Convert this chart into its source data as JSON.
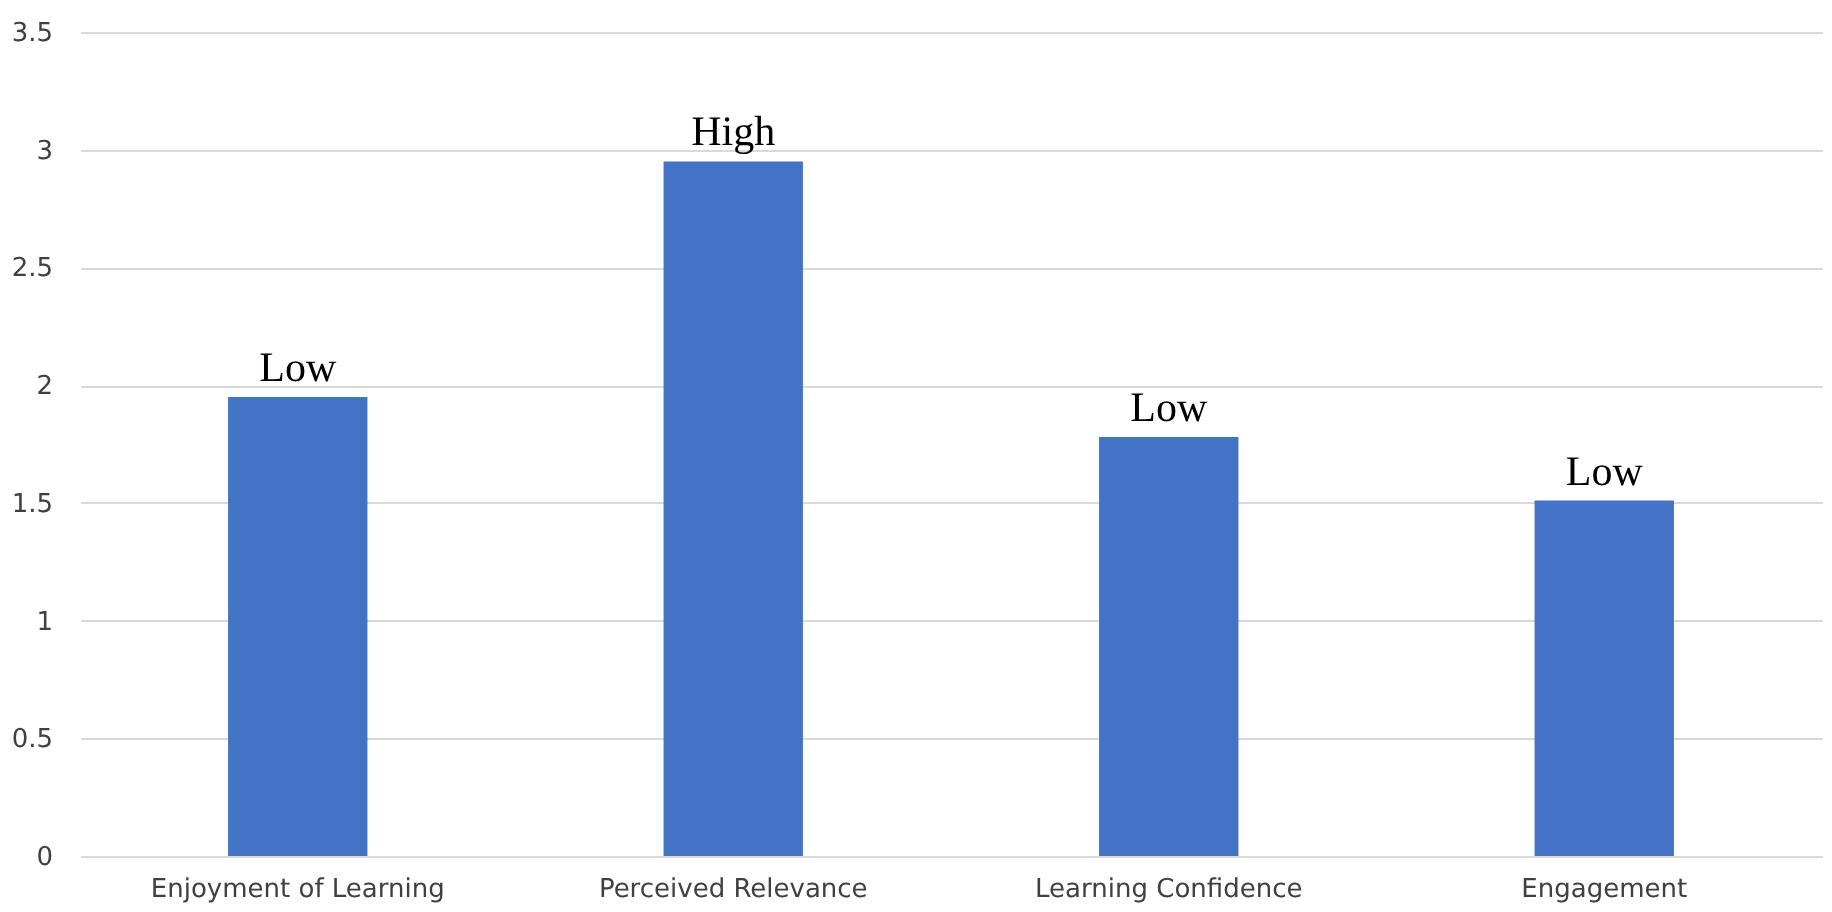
{
  "chart_data": {
    "type": "bar",
    "categories": [
      "Enjoyment of Learning",
      "Perceived Relevance",
      "Learning Confidence",
      "Engagement"
    ],
    "values": [
      1.95,
      2.95,
      1.78,
      1.51
    ],
    "value_labels": [
      "Low",
      "High",
      "Low",
      "Low"
    ],
    "color": "#4472c4",
    "ylim": [
      0,
      3.5
    ],
    "yticks": [
      0,
      0.5,
      1,
      1.5,
      2,
      2.5,
      3,
      3.5
    ],
    "grid": "y"
  }
}
